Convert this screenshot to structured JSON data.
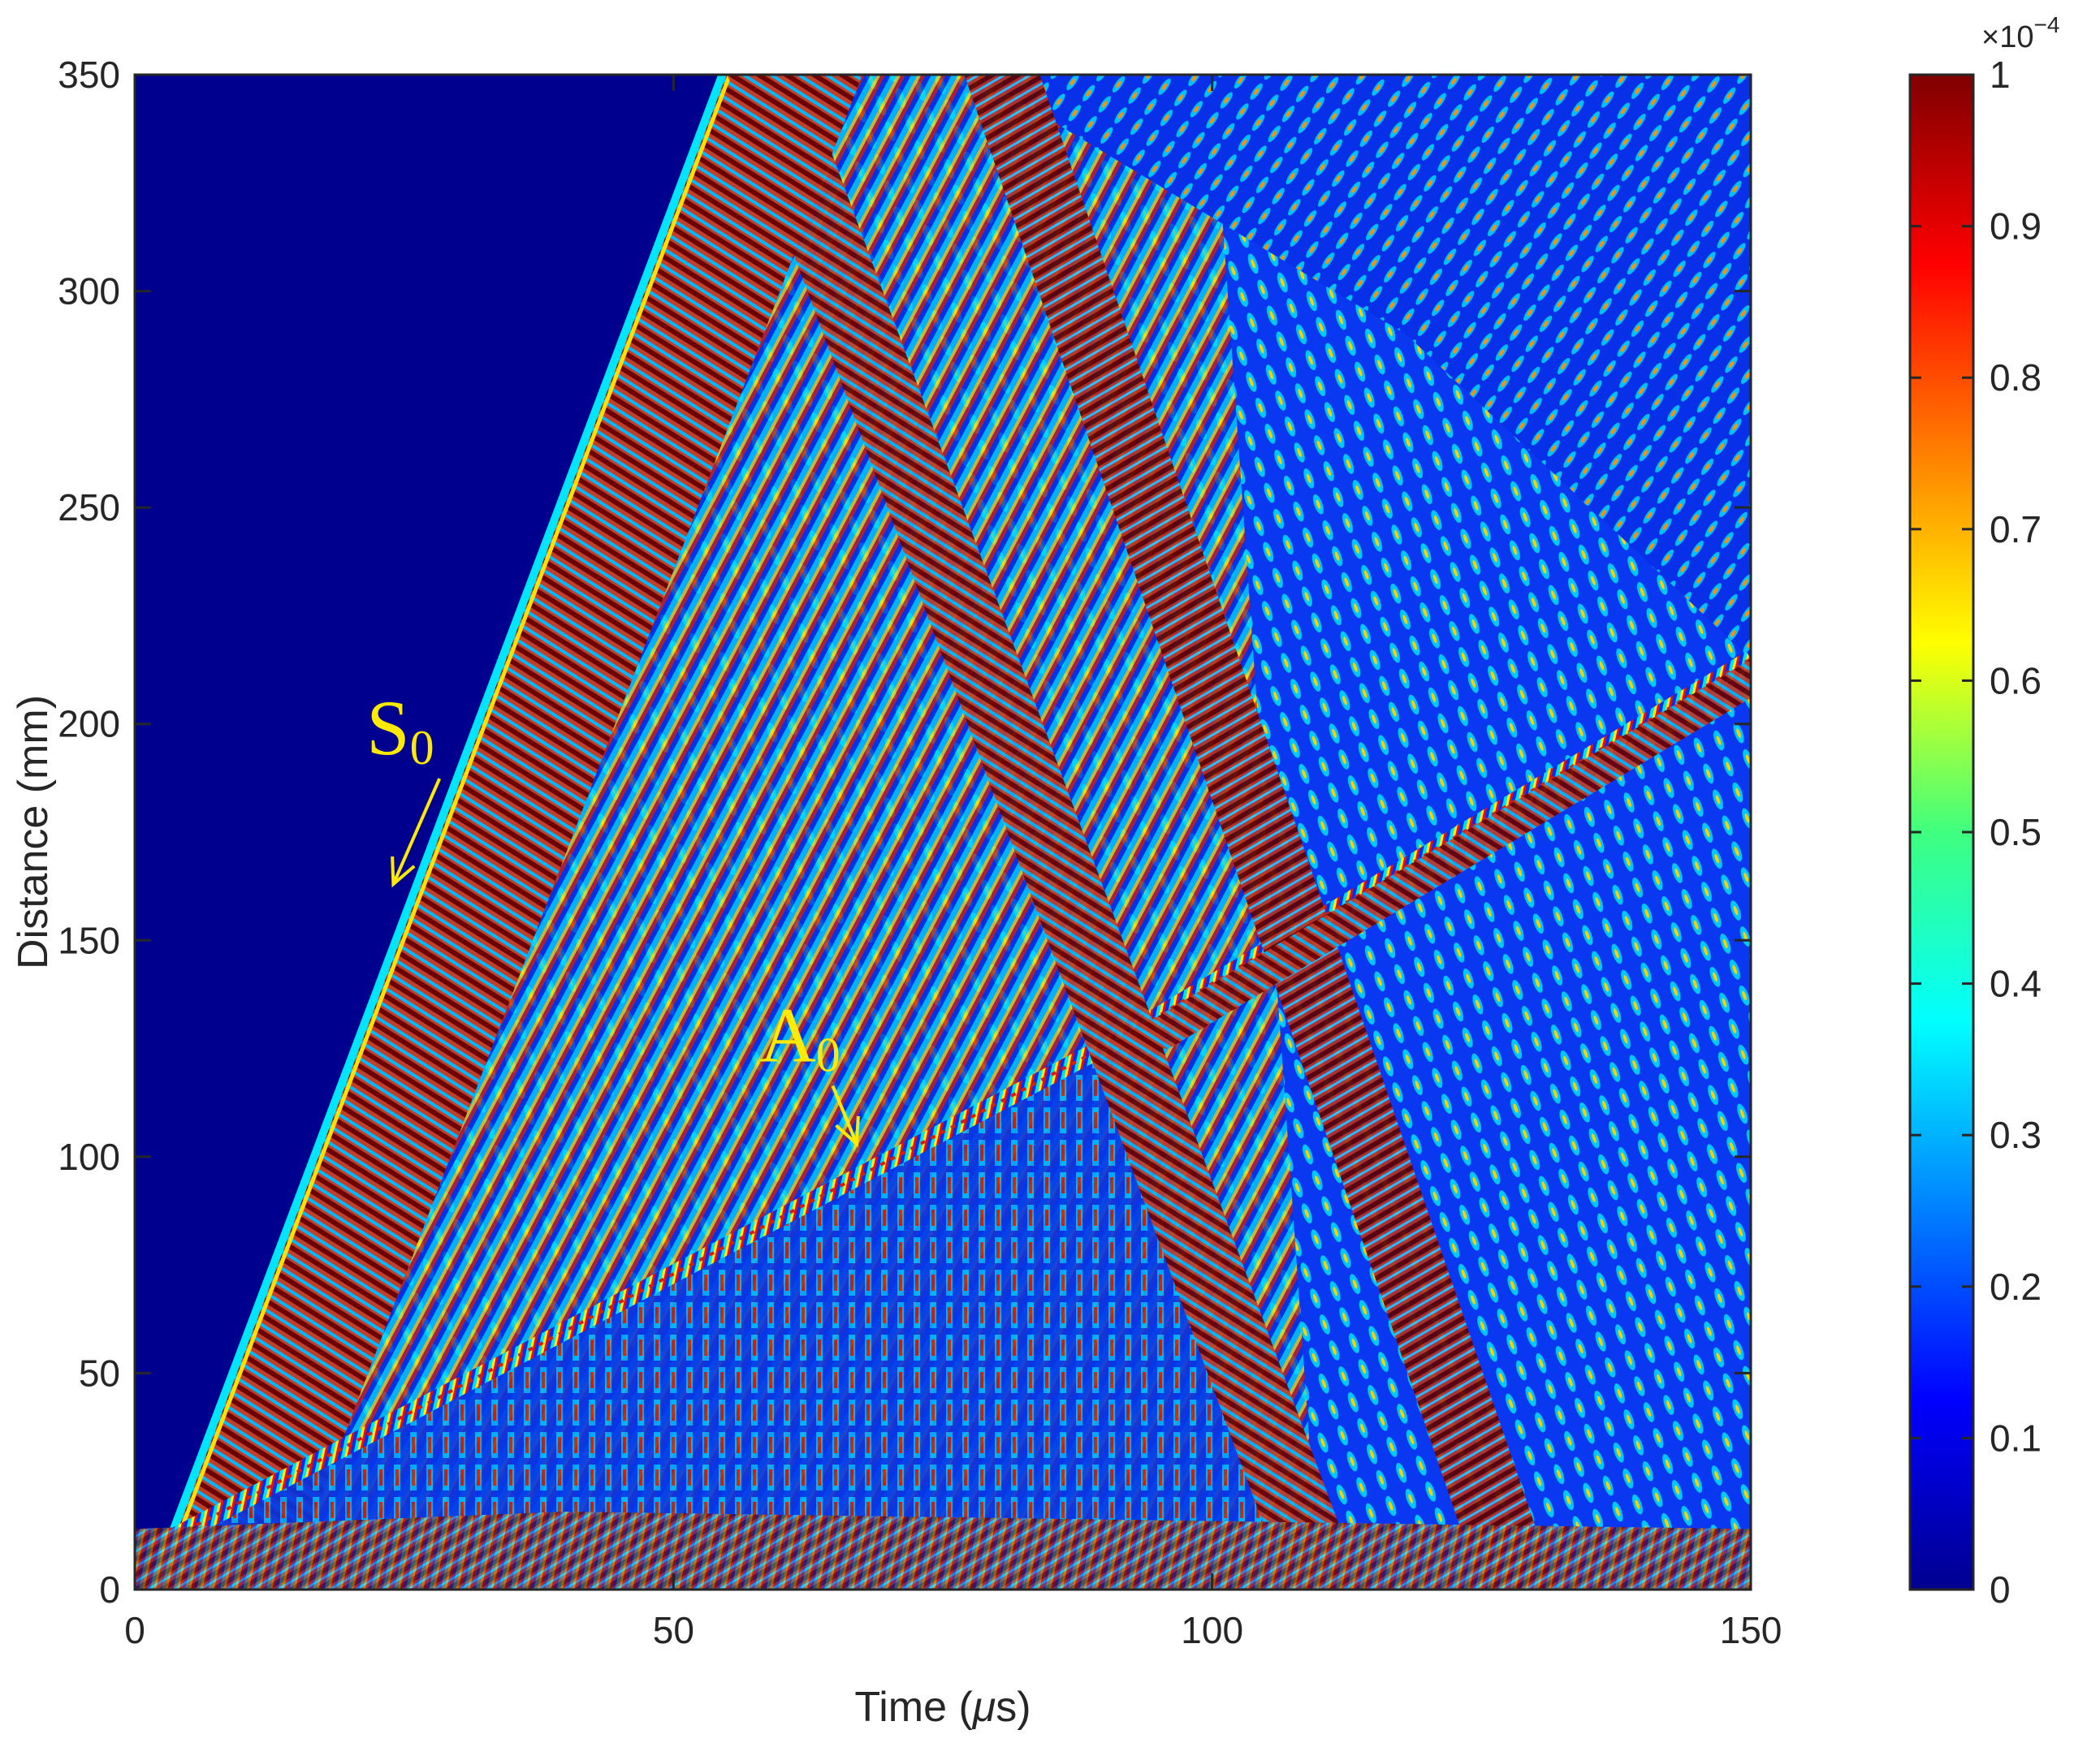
{
  "chart_data": {
    "type": "heatmap",
    "title": "",
    "xlabel": "Time (",
    "xlabel_unit": "μ",
    "xlabel_tail": "s)",
    "ylabel": "Distance (mm)",
    "xlim": [
      0,
      150
    ],
    "ylim": [
      0,
      350
    ],
    "x_ticks": [
      0,
      50,
      100,
      150
    ],
    "y_ticks": [
      0,
      50,
      100,
      150,
      200,
      250,
      300,
      350
    ],
    "colorbar": {
      "range": [
        0,
        1
      ],
      "ticks": [
        "0",
        "0.1",
        "0.2",
        "0.3",
        "0.4",
        "0.5",
        "0.6",
        "0.7",
        "0.8",
        "0.9",
        "1"
      ],
      "exponent_base": "×10",
      "exponent_power": "−4",
      "colormap": "jet"
    },
    "wave_modes": [
      {
        "name": "S0",
        "label_main": "S",
        "label_sub": "0",
        "speed_mm_per_us": 6.6,
        "arrow_target": {
          "t": 24,
          "d": 163
        }
      },
      {
        "name": "A0",
        "label_main": "A",
        "label_sub": "0",
        "speed_mm_per_us": 1.6,
        "arrow_target": {
          "t": 67,
          "d": 103
        }
      }
    ],
    "reflections": [
      {
        "from": {
          "t": 55,
          "d": 350
        },
        "to": {
          "t": 107,
          "d": 0
        }
      },
      {
        "from": {
          "t": 77,
          "d": 350
        },
        "to": {
          "t": 125,
          "d": 0
        }
      },
      {
        "from": {
          "t": 90,
          "d": 125
        },
        "to": {
          "t": 150,
          "d": 215
        }
      }
    ],
    "grid": false,
    "legend": "none"
  },
  "colors": {
    "background_field": "#00008f",
    "annotation": "#ffea00",
    "text": "#262626",
    "axis": "#262626"
  }
}
